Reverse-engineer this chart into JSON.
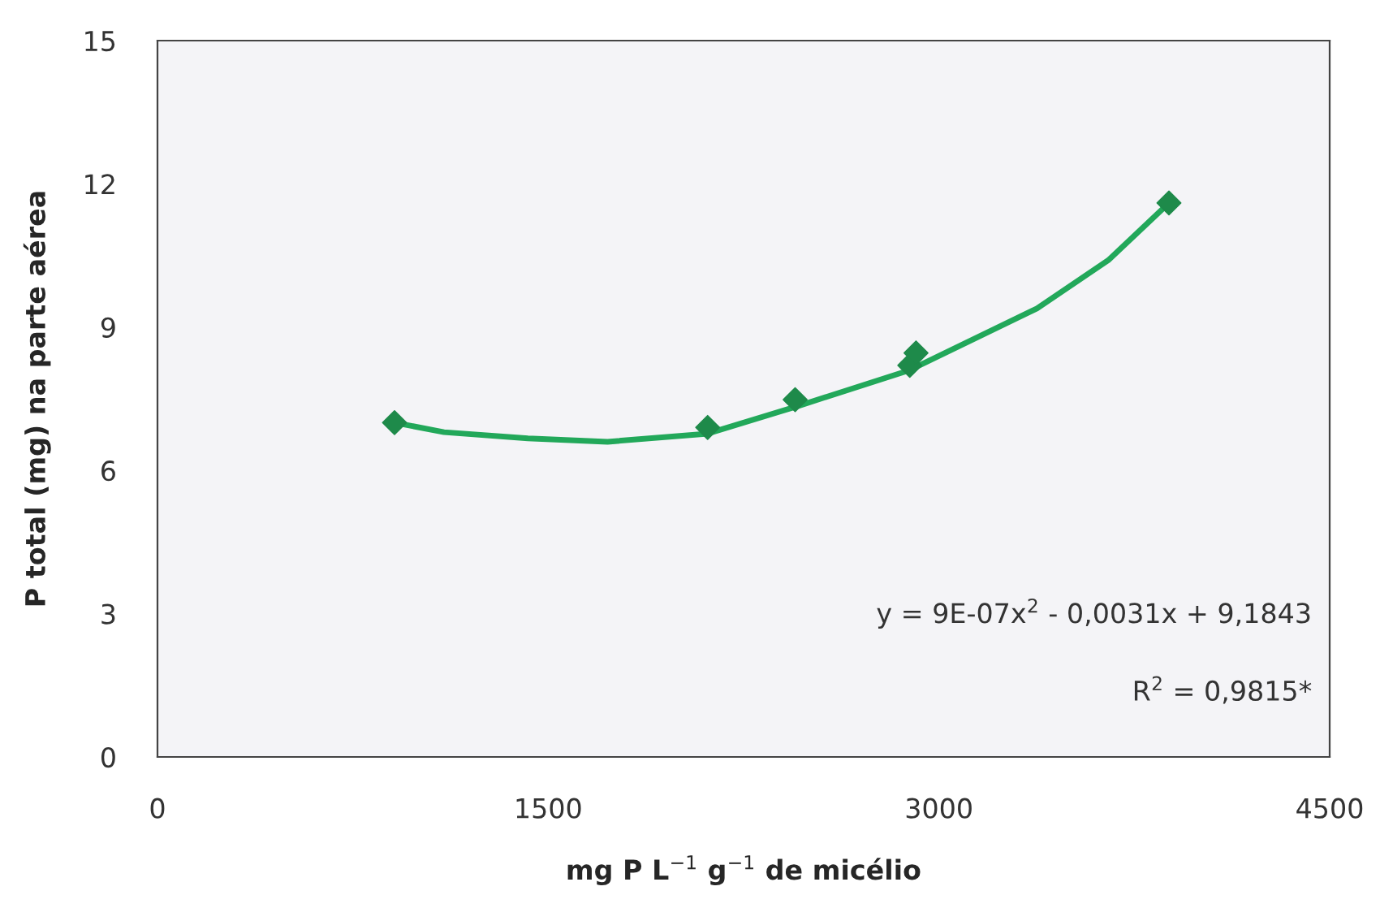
{
  "chart_data": {
    "type": "scatter",
    "xlabel": "mg P L$^{−1}$ g$^{−1}$ de micélio",
    "ylabel": "P total (mg) na parte aérea",
    "xlim": [
      0,
      4500
    ],
    "xticks": [
      0,
      1500,
      3000,
      4500
    ],
    "ylim": [
      0,
      15
    ],
    "yticks": [
      0,
      3,
      6,
      9,
      12,
      15
    ],
    "grid": false,
    "marker": "diamond",
    "series": [
      {
        "color": "#1e8a4a",
        "x": [
          910,
          2112,
          2448,
          2888,
          2912,
          3883
        ],
        "values": [
          7.0,
          6.9,
          7.48,
          8.2,
          8.46,
          11.6
        ]
      },
      {
        "type": "line",
        "color": "#22a85a",
        "marker": "none",
        "line_style": "solid",
        "x": [
          910,
          1100,
          1422,
          1728,
          2112,
          2460,
          2888,
          3376,
          3650,
          3883
        ],
        "values": [
          7.0,
          6.8,
          6.67,
          6.6,
          6.77,
          7.35,
          8.1,
          9.39,
          10.4,
          11.6
        ]
      }
    ],
    "annotations": [
      {
        "text": "y = 9E-07x$^{2}$ - 0,0031x + 9,1843"
      },
      {
        "text": "R$^{2}$ = 0,9815*"
      }
    ]
  }
}
